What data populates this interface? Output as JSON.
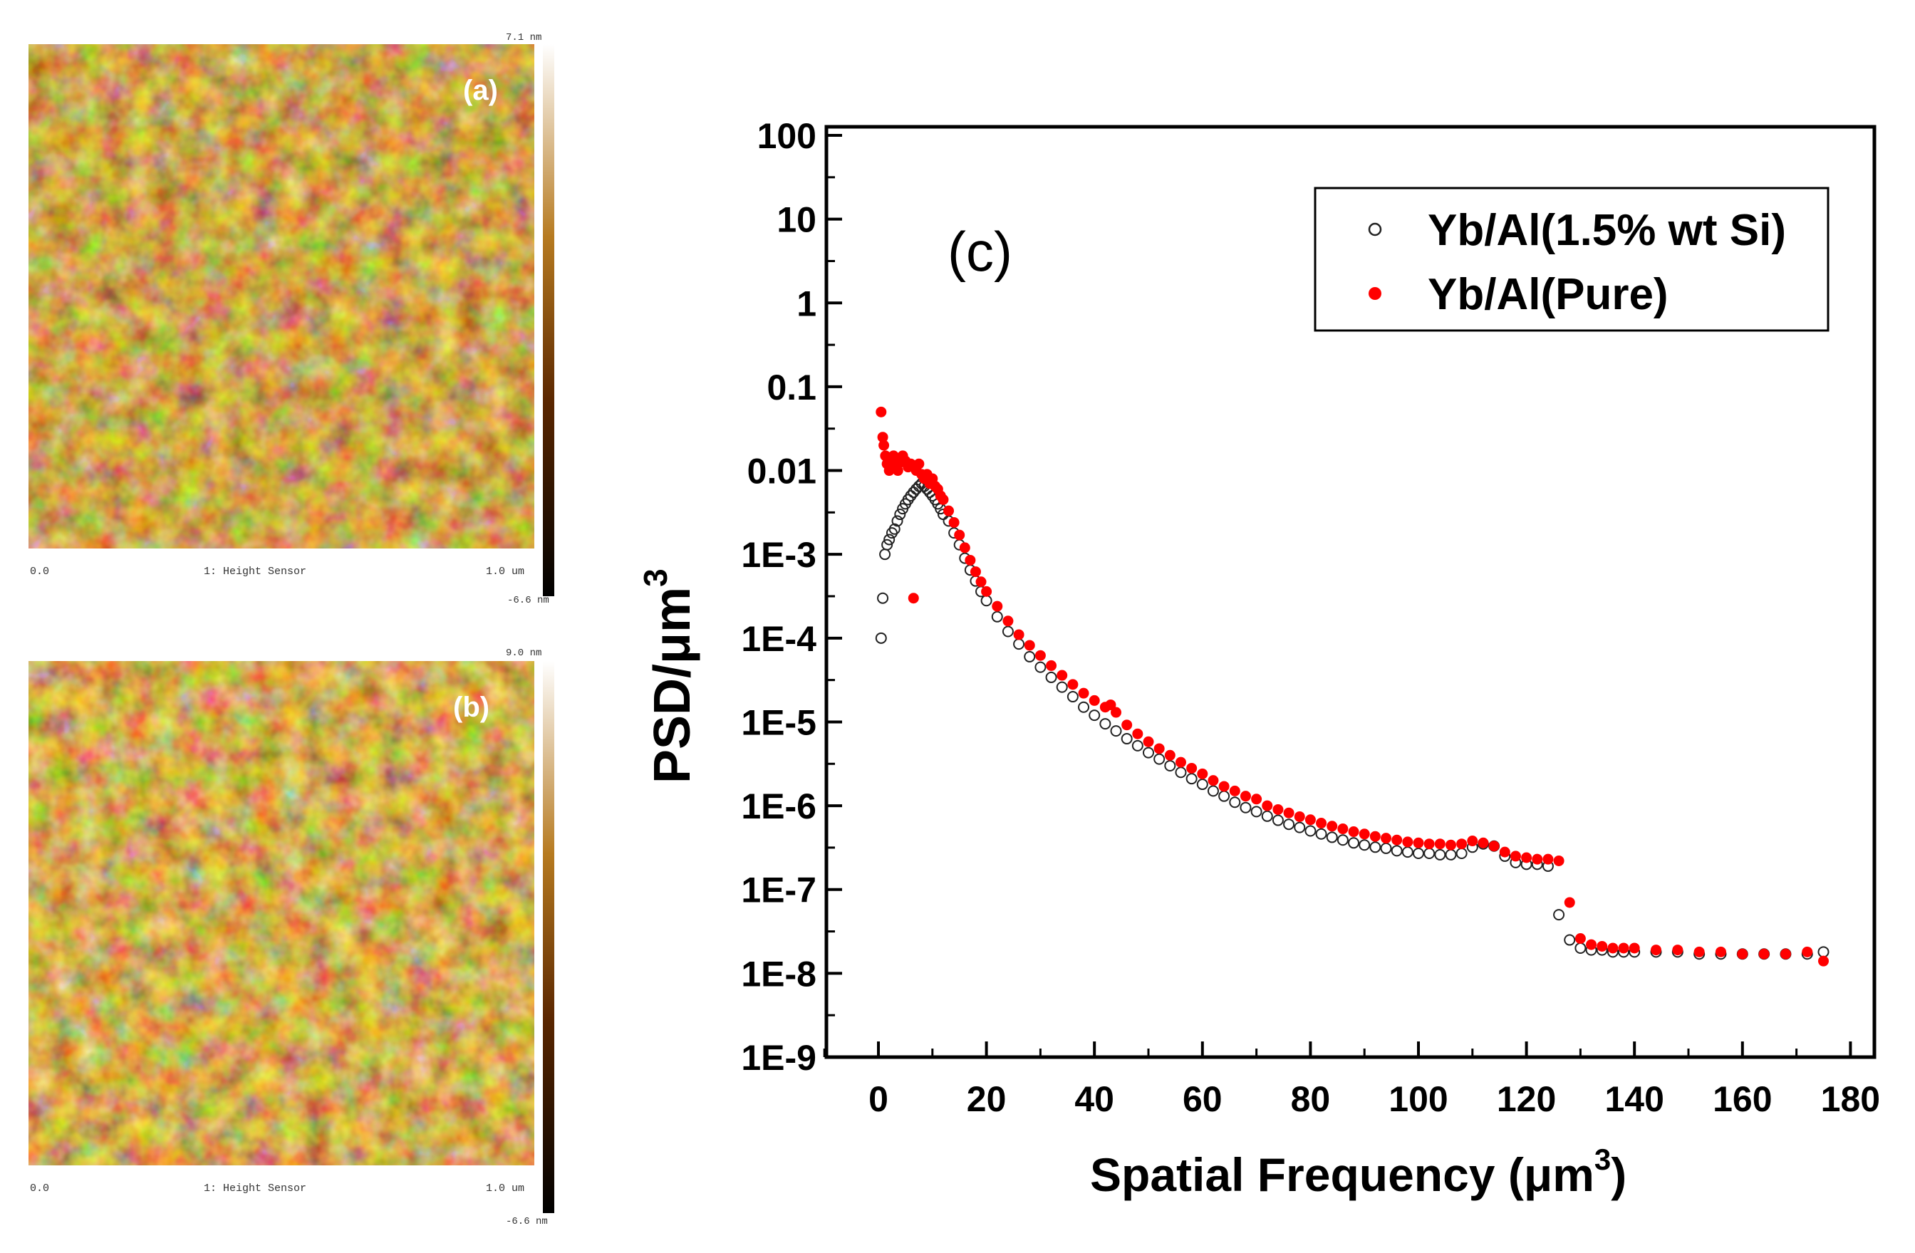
{
  "afm_a": {
    "label": "(a)",
    "colorbar_top": "7.1 nm",
    "colorbar_bottom": "-6.6 nm",
    "x_start": "0.0",
    "channel": "1: Height Sensor",
    "x_end": "1.0 um"
  },
  "afm_b": {
    "label": "(b)",
    "colorbar_top": "9.0 nm",
    "colorbar_bottom": "-6.6 nm",
    "x_start": "0.0",
    "channel": "1: Height Sensor",
    "x_end": "1.0 um"
  },
  "colors": {
    "afm_dark": "#1e0800",
    "afm_mid": "#9a5a0c",
    "afm_light": "#fff4cc",
    "pure_marker": "#ff0000",
    "si_marker": "#222222",
    "axis": "#000000"
  },
  "chart_data": {
    "type": "scatter",
    "panel_label": "(c)",
    "xlabel": "Spatial Frequency (μm",
    "xlabel_sup": "3",
    "xlabel_close": ")",
    "ylabel": "PSD/μm",
    "ylabel_sup": "3",
    "xlim": [
      -10,
      185
    ],
    "ylim": [
      1e-09,
      100
    ],
    "yscale": "log",
    "x_ticks": [
      0,
      20,
      40,
      60,
      80,
      100,
      120,
      140,
      160,
      180
    ],
    "x_tick_labels": [
      "0",
      "20",
      "40",
      "60",
      "80",
      "100",
      "120",
      "140",
      "160",
      "180"
    ],
    "y_ticks": [
      1e-09,
      1e-08,
      1e-07,
      1e-06,
      1e-05,
      0.0001,
      0.001,
      0.01,
      0.1,
      1,
      10,
      100
    ],
    "y_tick_labels": [
      "1E-9",
      "1E-8",
      "1E-7",
      "1E-6",
      "1E-5",
      "1E-4",
      "1E-3",
      "0.01",
      "0.1",
      "1",
      "10",
      "100"
    ],
    "legend_position": "top-right",
    "series": [
      {
        "name": "Yb/Al(1.5% wt Si)",
        "marker": "open-circle",
        "x": [
          0.5,
          0.8,
          1.2,
          1.6,
          2,
          2.5,
          3,
          3.5,
          4,
          4.5,
          5,
          5.5,
          6,
          6.5,
          7,
          7.5,
          8,
          8.5,
          9,
          9.5,
          10,
          10.5,
          11,
          11.5,
          12,
          13,
          14,
          15,
          16,
          17,
          18,
          19,
          20,
          22,
          24,
          26,
          28,
          30,
          32,
          34,
          36,
          38,
          40,
          42,
          44,
          46,
          48,
          50,
          52,
          54,
          56,
          58,
          60,
          62,
          64,
          66,
          68,
          70,
          72,
          74,
          76,
          78,
          80,
          82,
          84,
          86,
          88,
          90,
          92,
          94,
          96,
          98,
          100,
          102,
          104,
          106,
          108,
          110,
          112,
          114,
          116,
          118,
          120,
          122,
          124,
          126,
          128,
          130,
          132,
          134,
          136,
          138,
          140,
          144,
          148,
          152,
          156,
          160,
          164,
          168,
          172,
          175
        ],
        "y": [
          0.0001,
          0.0003,
          0.001,
          0.0013,
          0.0015,
          0.0018,
          0.002,
          0.0025,
          0.003,
          0.0035,
          0.004,
          0.0045,
          0.005,
          0.0055,
          0.006,
          0.0065,
          0.007,
          0.0065,
          0.006,
          0.0055,
          0.005,
          0.0045,
          0.004,
          0.0035,
          0.003,
          0.0025,
          0.0018,
          0.0013,
          0.0009,
          0.00065,
          0.00048,
          0.00036,
          0.00028,
          0.00018,
          0.00012,
          8.5e-05,
          6e-05,
          4.5e-05,
          3.4e-05,
          2.6e-05,
          2e-05,
          1.5e-05,
          1.2e-05,
          9.5e-06,
          7.8e-06,
          6.3e-06,
          5.2e-06,
          4.3e-06,
          3.6e-06,
          3e-06,
          2.5e-06,
          2.1e-06,
          1.8e-06,
          1.5e-06,
          1.3e-06,
          1.1e-06,
          9.5e-07,
          8.5e-07,
          7.5e-07,
          6.7e-07,
          6e-07,
          5.5e-07,
          5e-07,
          4.6e-07,
          4.2e-07,
          3.9e-07,
          3.6e-07,
          3.4e-07,
          3.2e-07,
          3.1e-07,
          2.9e-07,
          2.8e-07,
          2.7e-07,
          2.7e-07,
          2.6e-07,
          2.6e-07,
          2.7e-07,
          3.2e-07,
          3.5e-07,
          3.3e-07,
          2.5e-07,
          2.1e-07,
          2e-07,
          2e-07,
          1.9e-07,
          5e-08,
          2.5e-08,
          2e-08,
          1.9e-08,
          1.9e-08,
          1.8e-08,
          1.8e-08,
          1.8e-08,
          1.8e-08,
          1.8e-08,
          1.7e-08,
          1.7e-08,
          1.7e-08,
          1.7e-08,
          1.7e-08,
          1.7e-08,
          1.8e-08
        ]
      },
      {
        "name": "Yb/Al(Pure)",
        "marker": "filled-circle",
        "x": [
          0.5,
          0.8,
          1,
          1.3,
          1.6,
          2,
          2.4,
          2.8,
          3.2,
          3.6,
          4,
          4.5,
          5,
          5.5,
          6,
          6.5,
          7,
          7.5,
          8,
          8.5,
          9,
          9.5,
          10,
          10.5,
          11,
          11.5,
          12,
          13,
          14,
          15,
          16,
          17,
          18,
          19,
          20,
          22,
          24,
          26,
          28,
          30,
          32,
          34,
          36,
          38,
          40,
          42,
          43,
          44,
          46,
          48,
          50,
          52,
          54,
          56,
          58,
          60,
          62,
          64,
          66,
          68,
          70,
          72,
          74,
          76,
          78,
          80,
          82,
          84,
          86,
          88,
          90,
          92,
          94,
          96,
          98,
          100,
          102,
          104,
          106,
          108,
          110,
          112,
          114,
          116,
          118,
          120,
          122,
          124,
          126,
          128,
          130,
          132,
          134,
          136,
          138,
          140,
          144,
          148,
          152,
          156,
          160,
          164,
          168,
          172,
          175
        ],
        "y": [
          0.05,
          0.025,
          0.02,
          0.015,
          0.012,
          0.01,
          0.012,
          0.015,
          0.012,
          0.01,
          0.0125,
          0.015,
          0.013,
          0.011,
          0.012,
          0.0003,
          0.01,
          0.012,
          0.009,
          0.008,
          0.009,
          0.007,
          0.008,
          0.0065,
          0.006,
          0.005,
          0.0045,
          0.0033,
          0.0024,
          0.0017,
          0.0012,
          0.00085,
          0.00062,
          0.00047,
          0.00036,
          0.00024,
          0.00016,
          0.00011,
          8.2e-05,
          6.2e-05,
          4.7e-05,
          3.6e-05,
          2.8e-05,
          2.2e-05,
          1.8e-05,
          1.5e-05,
          1.6e-05,
          1.3e-05,
          9.2e-06,
          7.2e-06,
          5.8e-06,
          4.8e-06,
          4e-06,
          3.3e-06,
          2.8e-06,
          2.4e-06,
          2e-06,
          1.7e-06,
          1.5e-06,
          1.3e-06,
          1.2e-06,
          1e-06,
          9e-07,
          8.2e-07,
          7.4e-07,
          6.8e-07,
          6.2e-07,
          5.7e-07,
          5.3e-07,
          4.9e-07,
          4.6e-07,
          4.3e-07,
          4.1e-07,
          3.9e-07,
          3.7e-07,
          3.6e-07,
          3.5e-07,
          3.5e-07,
          3.4e-07,
          3.5e-07,
          3.8e-07,
          3.6e-07,
          3.3e-07,
          2.8e-07,
          2.5e-07,
          2.4e-07,
          2.3e-07,
          2.3e-07,
          2.2e-07,
          7e-08,
          2.6e-08,
          2.2e-08,
          2.1e-08,
          2e-08,
          2e-08,
          2e-08,
          1.9e-08,
          1.9e-08,
          1.8e-08,
          1.8e-08,
          1.7e-08,
          1.7e-08,
          1.7e-08,
          1.8e-08,
          1.4e-08
        ]
      }
    ]
  }
}
